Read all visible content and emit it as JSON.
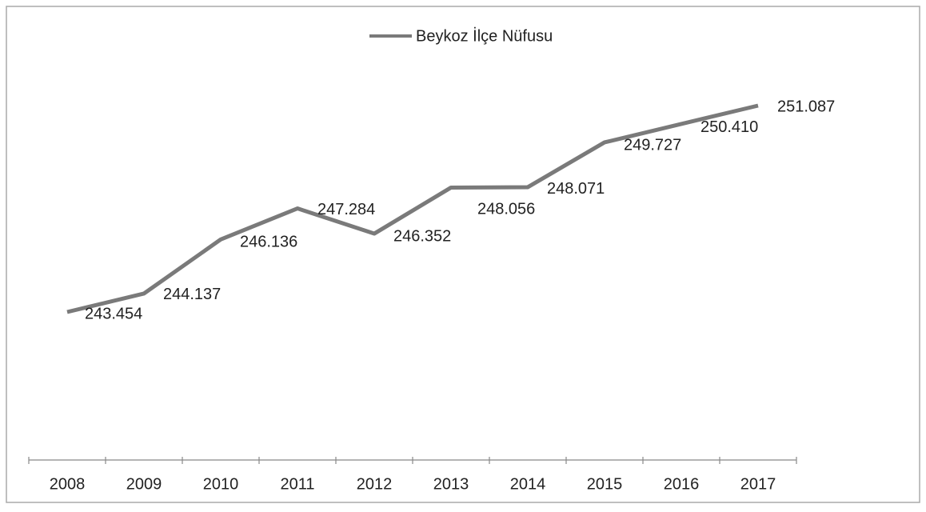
{
  "chart_data": {
    "type": "line",
    "categories": [
      "2008",
      "2009",
      "2010",
      "2011",
      "2012",
      "2013",
      "2014",
      "2015",
      "2016",
      "2017"
    ],
    "series": [
      {
        "name": "Beykoz İlçe Nüfusu",
        "color": "#7a7a7a",
        "values": [
          243454,
          244137,
          246136,
          247284,
          246352,
          248056,
          248071,
          249727,
          250410,
          251087
        ],
        "value_labels": [
          "243.454",
          "244.137",
          "246.136",
          "247.284",
          "246.352",
          "248.056",
          "248.071",
          "249.727",
          "250.410",
          "251.087"
        ]
      }
    ],
    "legend": "top"
  }
}
